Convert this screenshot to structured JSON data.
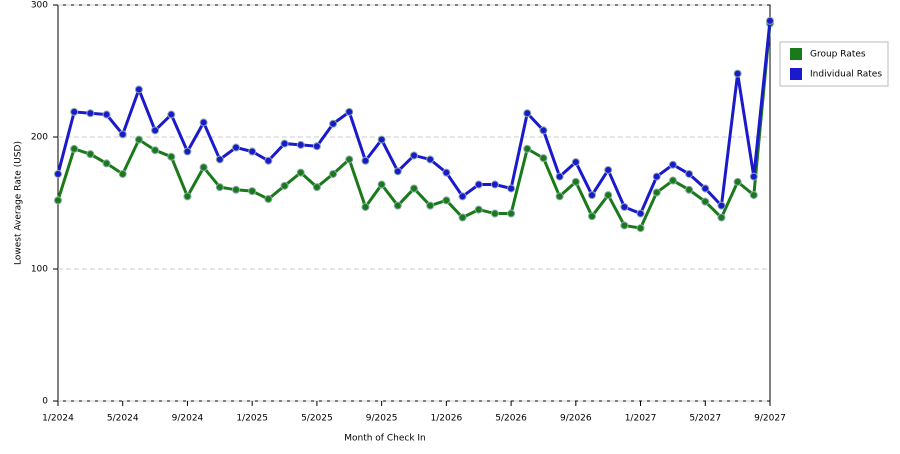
{
  "chart_data": {
    "type": "line",
    "x_label": "Month of Check In",
    "y_label": "Lowest Average Rate (USD)",
    "categories": [
      "1/2024",
      null,
      null,
      null,
      "5/2024",
      null,
      null,
      null,
      "9/2024",
      null,
      null,
      null,
      "1/2025",
      null,
      null,
      null,
      "5/2025",
      null,
      null,
      null,
      "9/2025",
      null,
      null,
      null,
      "1/2026",
      null,
      null,
      null,
      "5/2026",
      null,
      null,
      null,
      "9/2026",
      null,
      null,
      null,
      "1/2027",
      null,
      null,
      null,
      "5/2027",
      null,
      null,
      null,
      "9/2027"
    ],
    "series": [
      {
        "name": "Group Rates",
        "color": "#1a7a1a",
        "values": [
          152,
          191,
          187,
          180,
          172,
          198,
          190,
          185,
          155,
          177,
          162,
          160,
          159,
          153,
          163,
          173,
          162,
          172,
          183,
          147,
          164,
          148,
          161,
          148,
          152,
          139,
          145,
          142,
          142,
          191,
          184,
          155,
          166,
          140,
          156,
          133,
          131,
          158,
          167,
          160,
          151,
          139,
          166,
          156,
          286
        ]
      },
      {
        "name": "Individual Rates",
        "color": "#1a1acc",
        "values": [
          172,
          219,
          218,
          217,
          202,
          236,
          205,
          217,
          189,
          211,
          183,
          192,
          189,
          182,
          195,
          194,
          193,
          210,
          219,
          182,
          198,
          174,
          186,
          183,
          173,
          155,
          164,
          164,
          161,
          218,
          205,
          170,
          181,
          156,
          175,
          147,
          142,
          170,
          179,
          172,
          161,
          148,
          248,
          170,
          288
        ]
      }
    ],
    "ylim": [
      0,
      300
    ],
    "yticks": [
      0,
      100,
      200,
      300
    ],
    "grid": true,
    "legend": "top-right"
  }
}
